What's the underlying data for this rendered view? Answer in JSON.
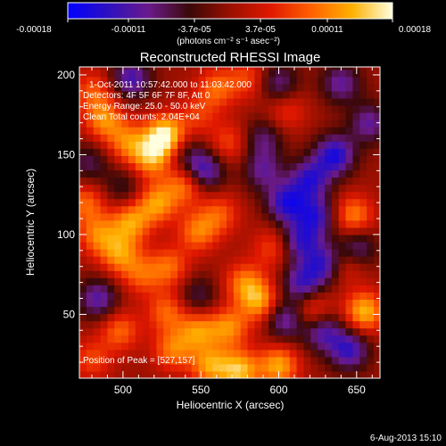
{
  "colorbar": {
    "tick_labels": [
      "-0.00018",
      "-0.00011",
      "-3.7e-05",
      "3.7e-05",
      "0.00011",
      "0.00018"
    ],
    "unit_label": "(photons cm⁻² s⁻¹ asec⁻²)",
    "range": [
      -0.00018,
      0.00018
    ],
    "colors": [
      "#0000ff",
      "#2e10c0",
      "#6a1a8a",
      "#3a0808",
      "#9a1000",
      "#e01800",
      "#ff6000",
      "#ffb000",
      "#ffffe0"
    ]
  },
  "plot": {
    "title": "Reconstructed RHESSI Image",
    "xlabel": "Heliocentric X (arcsec)",
    "ylabel": "Heliocentric Y (arcsec)",
    "info_lines": [
      "1-Oct-2011 10:57:42.000 to 11:03:42.000",
      "Detectors: 4F 5F 6F 7F 8F, Att 0",
      "Energy Range: 25.0 - 50.0 keV",
      "Clean     Total counts: 2.04E+04"
    ],
    "peak_label": "Position of Peak = [527,157]"
  },
  "footer_date": "6-Aug-2013 15:10",
  "chart_data": {
    "type": "heatmap",
    "title": "Reconstructed RHESSI Image",
    "xlabel": "Heliocentric X (arcsec)",
    "ylabel": "Heliocentric Y (arcsec)",
    "xlim": [
      472,
      665
    ],
    "ylim": [
      10,
      205
    ],
    "x_ticks": [
      500,
      550,
      600,
      650
    ],
    "y_ticks": [
      50,
      100,
      150,
      200
    ],
    "x_tick_labels": [
      "500",
      "550",
      "600",
      "650"
    ],
    "y_tick_labels": [
      "50",
      "100",
      "150",
      "200"
    ],
    "value_range": [
      -0.00018,
      0.00018
    ],
    "peak_position": [
      527,
      157
    ],
    "features": [
      {
        "x": 527,
        "y": 162,
        "v": 0.00018
      },
      {
        "x": 518,
        "y": 148,
        "v": 0.00012
      },
      {
        "x": 503,
        "y": 158,
        "v": 0.0001
      },
      {
        "x": 488,
        "y": 172,
        "v": 0.00011
      },
      {
        "x": 481,
        "y": 190,
        "v": 8e-05
      },
      {
        "x": 540,
        "y": 132,
        "v": 0.00011
      },
      {
        "x": 522,
        "y": 120,
        "v": 0.00012
      },
      {
        "x": 505,
        "y": 108,
        "v": 0.00012
      },
      {
        "x": 484,
        "y": 100,
        "v": 0.0001
      },
      {
        "x": 498,
        "y": 88,
        "v": 0.00011
      },
      {
        "x": 476,
        "y": 120,
        "v": 9e-05
      },
      {
        "x": 512,
        "y": 75,
        "v": 8e-05
      },
      {
        "x": 530,
        "y": 80,
        "v": 9e-05
      },
      {
        "x": 548,
        "y": 102,
        "v": 0.0001
      },
      {
        "x": 562,
        "y": 113,
        "v": 8e-05
      },
      {
        "x": 578,
        "y": 70,
        "v": 0.0001
      },
      {
        "x": 588,
        "y": 58,
        "v": 0.00012
      },
      {
        "x": 568,
        "y": 42,
        "v": 0.00011
      },
      {
        "x": 548,
        "y": 40,
        "v": 0.00011
      },
      {
        "x": 532,
        "y": 28,
        "v": 0.0001
      },
      {
        "x": 528,
        "y": 52,
        "v": 9e-05
      },
      {
        "x": 596,
        "y": 92,
        "v": 7e-05
      },
      {
        "x": 575,
        "y": 15,
        "v": 0.00014
      },
      {
        "x": 556,
        "y": 18,
        "v": 0.00012
      },
      {
        "x": 560,
        "y": 192,
        "v": 9e-05
      },
      {
        "x": 580,
        "y": 198,
        "v": 7e-05
      },
      {
        "x": 568,
        "y": 158,
        "v": 7e-05
      },
      {
        "x": 548,
        "y": 175,
        "v": 6e-05
      },
      {
        "x": 605,
        "y": 178,
        "v": 6e-05
      },
      {
        "x": 648,
        "y": 112,
        "v": 0.00011
      },
      {
        "x": 642,
        "y": 82,
        "v": 8e-05
      },
      {
        "x": 655,
        "y": 52,
        "v": 0.00014
      },
      {
        "x": 622,
        "y": 52,
        "v": 9e-05
      },
      {
        "x": 600,
        "y": 18,
        "v": 0.00013
      },
      {
        "x": 498,
        "y": 40,
        "v": 9e-05
      },
      {
        "x": 480,
        "y": 22,
        "v": 7e-05
      },
      {
        "x": 552,
        "y": 140,
        "v": -0.00013
      },
      {
        "x": 540,
        "y": 150,
        "v": -6e-05
      },
      {
        "x": 636,
        "y": 150,
        "v": -0.00015
      },
      {
        "x": 620,
        "y": 135,
        "v": -0.00013
      },
      {
        "x": 605,
        "y": 120,
        "v": -0.00014
      },
      {
        "x": 624,
        "y": 112,
        "v": -0.00012
      },
      {
        "x": 614,
        "y": 96,
        "v": -0.00012
      },
      {
        "x": 630,
        "y": 82,
        "v": -0.00013
      },
      {
        "x": 615,
        "y": 70,
        "v": -0.00012
      },
      {
        "x": 604,
        "y": 47,
        "v": -0.00011
      },
      {
        "x": 628,
        "y": 40,
        "v": -0.00012
      },
      {
        "x": 645,
        "y": 28,
        "v": -0.00013
      },
      {
        "x": 658,
        "y": 170,
        "v": -0.0001
      },
      {
        "x": 650,
        "y": 92,
        "v": -0.0001
      },
      {
        "x": 505,
        "y": 198,
        "v": -0.00012
      },
      {
        "x": 484,
        "y": 60,
        "v": -0.00011
      },
      {
        "x": 548,
        "y": 62,
        "v": -7e-05
      },
      {
        "x": 500,
        "y": 130,
        "v": -6e-05
      },
      {
        "x": 590,
        "y": 160,
        "v": -8e-05
      },
      {
        "x": 600,
        "y": 195,
        "v": -9e-05
      },
      {
        "x": 640,
        "y": 195,
        "v": -0.0001
      },
      {
        "x": 590,
        "y": 140,
        "v": -9e-05
      },
      {
        "x": 478,
        "y": 145,
        "v": -7e-05
      }
    ]
  }
}
